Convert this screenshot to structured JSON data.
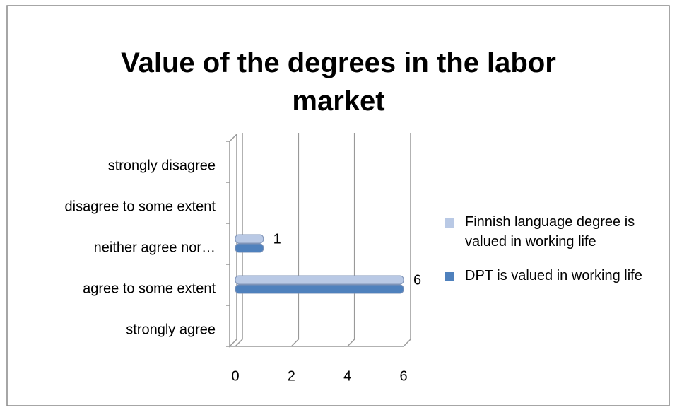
{
  "chart_data": {
    "type": "bar",
    "orientation": "horizontal",
    "title": "Value of the degrees in the labor market",
    "categories": [
      "strongly agree",
      "agree to some extent",
      "neither agree nor…",
      "disagree to some extent",
      "strongly disagree"
    ],
    "series": [
      {
        "name": "Finnish language degree is valued in working life",
        "color": "#b9c9e5",
        "values": [
          null,
          6,
          1,
          null,
          null
        ]
      },
      {
        "name": "DPT is valued in working life",
        "color": "#4f81bd",
        "values": [
          null,
          6,
          1,
          null,
          null
        ]
      }
    ],
    "xlim": [
      0,
      6
    ],
    "xticks": [
      0,
      2,
      4,
      6
    ],
    "grid": true,
    "legend": "right"
  }
}
